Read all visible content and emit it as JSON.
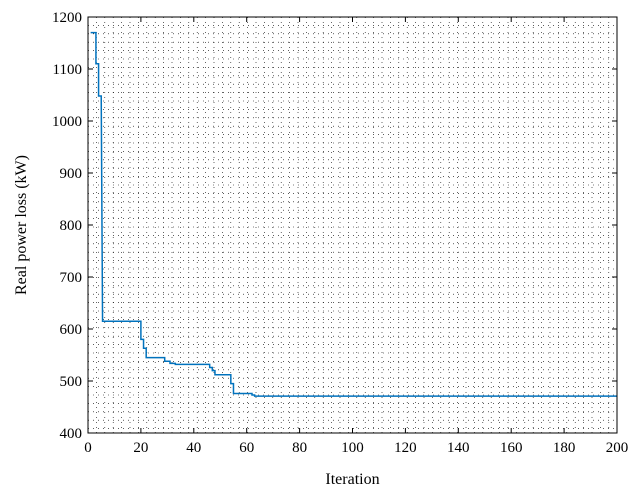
{
  "chart_data": {
    "type": "line",
    "title": "",
    "xlabel": "Iteration",
    "ylabel": "Real power loss (kW)",
    "xlim": [
      0,
      200
    ],
    "ylim": [
      400,
      1200
    ],
    "x_ticks": [
      0,
      20,
      40,
      60,
      80,
      100,
      120,
      140,
      160,
      180,
      200
    ],
    "y_ticks": [
      400,
      500,
      600,
      700,
      800,
      900,
      1000,
      1100,
      1200
    ],
    "grid": "dotted",
    "legend": "none",
    "series": [
      {
        "color": "#0072BD",
        "points": [
          [
            1,
            1170
          ],
          [
            3,
            1170
          ],
          [
            3,
            1110
          ],
          [
            4,
            1110
          ],
          [
            4,
            1048
          ],
          [
            5,
            1048
          ],
          [
            5.5,
            615
          ],
          [
            20,
            615
          ],
          [
            20,
            580
          ],
          [
            21,
            580
          ],
          [
            21,
            563
          ],
          [
            22,
            563
          ],
          [
            22,
            545
          ],
          [
            29,
            545
          ],
          [
            29,
            538
          ],
          [
            31,
            538
          ],
          [
            31,
            534
          ],
          [
            33,
            534
          ],
          [
            33,
            532
          ],
          [
            46,
            532
          ],
          [
            46,
            526
          ],
          [
            47,
            526
          ],
          [
            47,
            520
          ],
          [
            48,
            520
          ],
          [
            48,
            512
          ],
          [
            54,
            512
          ],
          [
            54,
            495
          ],
          [
            55,
            495
          ],
          [
            55,
            476
          ],
          [
            62,
            476
          ],
          [
            62,
            473
          ],
          [
            63,
            473
          ],
          [
            63,
            471
          ],
          [
            200,
            471
          ]
        ]
      }
    ]
  }
}
